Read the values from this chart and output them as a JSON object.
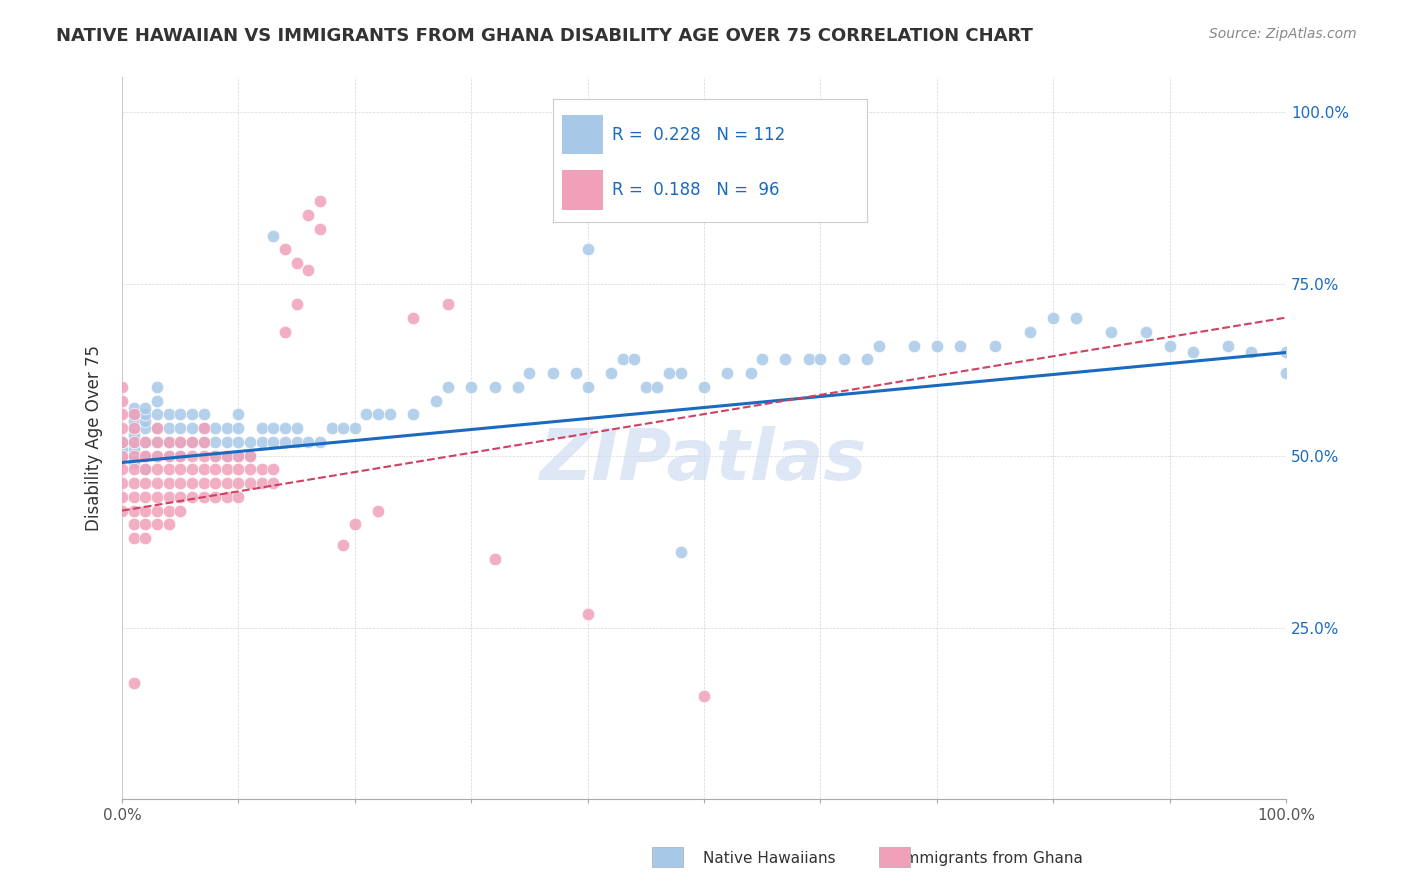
{
  "title": "NATIVE HAWAIIAN VS IMMIGRANTS FROM GHANA DISABILITY AGE OVER 75 CORRELATION CHART",
  "source_text": "Source: ZipAtlas.com",
  "ylabel": "Disability Age Over 75",
  "r_blue": 0.228,
  "n_blue": 112,
  "r_pink": 0.188,
  "n_pink": 96,
  "blue_color": "#a8c8e8",
  "pink_color": "#f0a0b8",
  "line_blue_color": "#1a6bbf",
  "line_pink_color": "#d04060",
  "legend_r_color": "#1a6bbf",
  "title_color": "#333333",
  "watermark_color": "#c8d8f0",
  "watermark_text": "ZIPatlas",
  "xmin": 0.0,
  "xmax": 1.0,
  "ymin": 0.0,
  "ymax": 1.05,
  "y_tick_labels": [
    "25.0%",
    "50.0%",
    "75.0%",
    "100.0%"
  ],
  "y_tick_values": [
    0.25,
    0.5,
    0.75,
    1.0
  ],
  "blue_line_x0": 0.0,
  "blue_line_y0": 0.49,
  "blue_line_x1": 1.0,
  "blue_line_y1": 0.65,
  "pink_line_x0": 0.0,
  "pink_line_y0": 0.42,
  "pink_line_x1": 0.57,
  "pink_line_y1": 0.58,
  "blue_scatter_x": [
    0.0,
    0.0,
    0.0,
    0.01,
    0.01,
    0.01,
    0.01,
    0.01,
    0.01,
    0.01,
    0.01,
    0.01,
    0.02,
    0.02,
    0.02,
    0.02,
    0.02,
    0.02,
    0.02,
    0.03,
    0.03,
    0.03,
    0.03,
    0.03,
    0.03,
    0.04,
    0.04,
    0.04,
    0.04,
    0.05,
    0.05,
    0.05,
    0.05,
    0.06,
    0.06,
    0.06,
    0.07,
    0.07,
    0.07,
    0.08,
    0.08,
    0.08,
    0.09,
    0.09,
    0.09,
    0.1,
    0.1,
    0.1,
    0.1,
    0.11,
    0.11,
    0.12,
    0.12,
    0.13,
    0.13,
    0.14,
    0.14,
    0.15,
    0.15,
    0.16,
    0.17,
    0.18,
    0.19,
    0.2,
    0.21,
    0.22,
    0.23,
    0.25,
    0.27,
    0.28,
    0.3,
    0.32,
    0.34,
    0.35,
    0.37,
    0.39,
    0.4,
    0.42,
    0.43,
    0.44,
    0.45,
    0.46,
    0.47,
    0.48,
    0.5,
    0.52,
    0.54,
    0.55,
    0.57,
    0.59,
    0.6,
    0.62,
    0.64,
    0.65,
    0.68,
    0.7,
    0.72,
    0.75,
    0.78,
    0.8,
    0.82,
    0.85,
    0.88,
    0.9,
    0.92,
    0.95,
    0.97,
    1.0,
    1.0,
    0.48,
    0.4,
    0.13
  ],
  "blue_scatter_y": [
    0.5,
    0.51,
    0.52,
    0.49,
    0.5,
    0.51,
    0.52,
    0.53,
    0.54,
    0.55,
    0.56,
    0.57,
    0.48,
    0.5,
    0.52,
    0.54,
    0.55,
    0.56,
    0.57,
    0.5,
    0.52,
    0.54,
    0.56,
    0.58,
    0.6,
    0.5,
    0.52,
    0.54,
    0.56,
    0.5,
    0.52,
    0.54,
    0.56,
    0.52,
    0.54,
    0.56,
    0.52,
    0.54,
    0.56,
    0.5,
    0.52,
    0.54,
    0.5,
    0.52,
    0.54,
    0.5,
    0.52,
    0.54,
    0.56,
    0.5,
    0.52,
    0.52,
    0.54,
    0.52,
    0.54,
    0.52,
    0.54,
    0.52,
    0.54,
    0.52,
    0.52,
    0.54,
    0.54,
    0.54,
    0.56,
    0.56,
    0.56,
    0.56,
    0.58,
    0.6,
    0.6,
    0.6,
    0.6,
    0.62,
    0.62,
    0.62,
    0.6,
    0.62,
    0.64,
    0.64,
    0.6,
    0.6,
    0.62,
    0.62,
    0.6,
    0.62,
    0.62,
    0.64,
    0.64,
    0.64,
    0.64,
    0.64,
    0.64,
    0.66,
    0.66,
    0.66,
    0.66,
    0.66,
    0.68,
    0.7,
    0.7,
    0.68,
    0.68,
    0.66,
    0.65,
    0.66,
    0.65,
    0.65,
    0.62,
    0.36,
    0.8,
    0.82
  ],
  "pink_scatter_x": [
    0.0,
    0.0,
    0.0,
    0.0,
    0.0,
    0.0,
    0.0,
    0.0,
    0.0,
    0.0,
    0.01,
    0.01,
    0.01,
    0.01,
    0.01,
    0.01,
    0.01,
    0.01,
    0.01,
    0.01,
    0.01,
    0.02,
    0.02,
    0.02,
    0.02,
    0.02,
    0.02,
    0.02,
    0.02,
    0.03,
    0.03,
    0.03,
    0.03,
    0.03,
    0.03,
    0.03,
    0.03,
    0.04,
    0.04,
    0.04,
    0.04,
    0.04,
    0.04,
    0.04,
    0.05,
    0.05,
    0.05,
    0.05,
    0.05,
    0.05,
    0.06,
    0.06,
    0.06,
    0.06,
    0.06,
    0.07,
    0.07,
    0.07,
    0.07,
    0.07,
    0.07,
    0.08,
    0.08,
    0.08,
    0.08,
    0.09,
    0.09,
    0.09,
    0.09,
    0.1,
    0.1,
    0.1,
    0.1,
    0.11,
    0.11,
    0.11,
    0.12,
    0.12,
    0.13,
    0.13,
    0.14,
    0.14,
    0.15,
    0.15,
    0.16,
    0.16,
    0.17,
    0.17,
    0.19,
    0.2,
    0.22,
    0.25,
    0.28,
    0.32,
    0.4,
    0.5
  ],
  "pink_scatter_y": [
    0.42,
    0.44,
    0.46,
    0.48,
    0.5,
    0.52,
    0.54,
    0.56,
    0.58,
    0.6,
    0.38,
    0.4,
    0.42,
    0.44,
    0.46,
    0.48,
    0.5,
    0.52,
    0.54,
    0.56,
    0.17,
    0.38,
    0.4,
    0.42,
    0.44,
    0.46,
    0.48,
    0.5,
    0.52,
    0.4,
    0.42,
    0.44,
    0.46,
    0.48,
    0.5,
    0.52,
    0.54,
    0.4,
    0.42,
    0.44,
    0.46,
    0.48,
    0.5,
    0.52,
    0.42,
    0.44,
    0.46,
    0.48,
    0.5,
    0.52,
    0.44,
    0.46,
    0.48,
    0.5,
    0.52,
    0.44,
    0.46,
    0.48,
    0.5,
    0.52,
    0.54,
    0.44,
    0.46,
    0.48,
    0.5,
    0.44,
    0.46,
    0.48,
    0.5,
    0.44,
    0.46,
    0.48,
    0.5,
    0.46,
    0.48,
    0.5,
    0.46,
    0.48,
    0.46,
    0.48,
    0.68,
    0.8,
    0.78,
    0.72,
    0.77,
    0.85,
    0.87,
    0.83,
    0.37,
    0.4,
    0.42,
    0.7,
    0.72,
    0.35,
    0.27,
    0.15
  ]
}
